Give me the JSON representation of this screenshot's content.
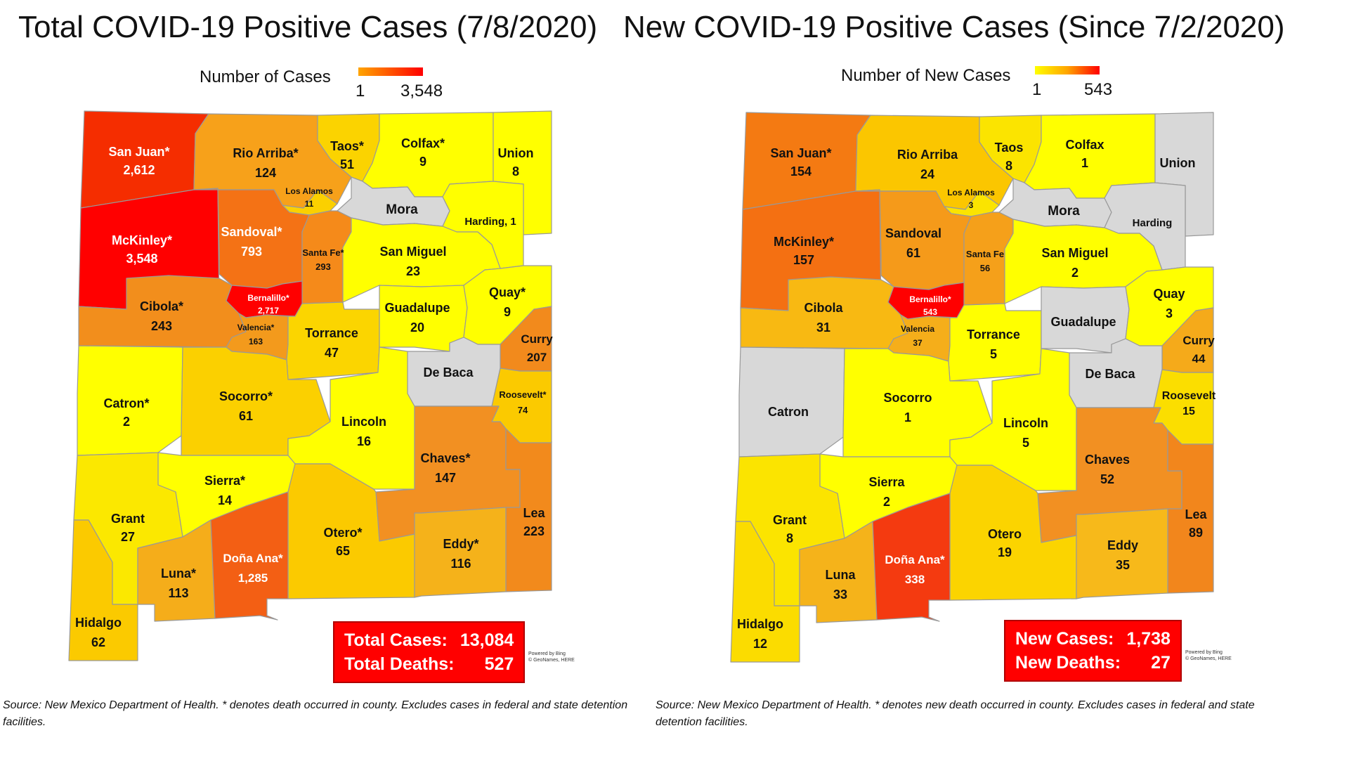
{
  "colors": {
    "low": "#ffff00",
    "mid": "#ffa500",
    "high": "#ff0000",
    "none": "#d8d8d8",
    "red": "#ff0000"
  },
  "left": {
    "title": "Total COVID-19 Positive Cases (7/8/2020)",
    "legend": {
      "label": "Number of Cases",
      "min": "1",
      "max": "3,548"
    },
    "summary": {
      "cases_label": "Total Cases:",
      "cases": "13,084",
      "deaths_label": "Total Deaths:",
      "deaths": "527"
    },
    "powered": [
      "Powered by Bing",
      "© GeoNames, HERE"
    ],
    "source": "Source: New Mexico Department of Health. * denotes death occurred in county. Excludes cases in federal and state detention facilities.",
    "counties": {
      "sanjuan": {
        "name": "San Juan*",
        "value": "2,612",
        "color": "#f52d00"
      },
      "rioarriba": {
        "name": "Rio Arriba*",
        "value": "124",
        "color": "#f7a11a"
      },
      "taos": {
        "name": "Taos*",
        "value": "51",
        "color": "#fbd300"
      },
      "colfax": {
        "name": "Colfax*",
        "value": "9",
        "color": "#ffff00"
      },
      "union": {
        "name": "Union",
        "value": "8",
        "color": "#ffff00"
      },
      "losalamos": {
        "name": "Los Alamos",
        "value": "11",
        "color": "#fbd000"
      },
      "mora": {
        "name": "Mora",
        "value": "",
        "color": "#d8d8d8"
      },
      "harding": {
        "name": "Harding, 1",
        "value": "",
        "color": "#ffff00"
      },
      "mckinley": {
        "name": "McKinley*",
        "value": "3,548",
        "color": "#ff0000"
      },
      "sandoval": {
        "name": "Sandoval*",
        "value": "793",
        "color": "#f47215"
      },
      "santafe": {
        "name": "Santa Fe*",
        "value": "293",
        "color": "#f58a1a"
      },
      "sanmiguel": {
        "name": "San Miguel",
        "value": "23",
        "color": "#ffff00"
      },
      "cibola": {
        "name": "Cibola*",
        "value": "243",
        "color": "#f28e1c"
      },
      "bernalillo": {
        "name": "Bernalillo*",
        "value": "2,717",
        "color": "#ff0000"
      },
      "valencia": {
        "name": "Valencia*",
        "value": "163",
        "color": "#f39a1c"
      },
      "torrance": {
        "name": "Torrance",
        "value": "47",
        "color": "#fbd500"
      },
      "guadalupe": {
        "name": "Guadalupe",
        "value": "20",
        "color": "#ffff00"
      },
      "quay": {
        "name": "Quay*",
        "value": "9",
        "color": "#ffff00"
      },
      "curry": {
        "name": "Curry",
        "value": "207",
        "color": "#f28a1c"
      },
      "debaca": {
        "name": "De Baca",
        "value": "",
        "color": "#d8d8d8"
      },
      "catron": {
        "name": "Catron*",
        "value": "2",
        "color": "#ffff00"
      },
      "socorro": {
        "name": "Socorro*",
        "value": "61",
        "color": "#fbd000"
      },
      "lincoln": {
        "name": "Lincoln",
        "value": "16",
        "color": "#ffff00"
      },
      "roosevelt": {
        "name": "Roosevelt*",
        "value": "74",
        "color": "#fbca00"
      },
      "chaves": {
        "name": "Chaves*",
        "value": "147",
        "color": "#f29022"
      },
      "sierra": {
        "name": "Sierra*",
        "value": "14",
        "color": "#ffff00"
      },
      "grant": {
        "name": "Grant",
        "value": "27",
        "color": "#fbe800"
      },
      "otero": {
        "name": "Otero*",
        "value": "65",
        "color": "#fbca00"
      },
      "lea": {
        "name": "Lea",
        "value": "223",
        "color": "#f28a1c"
      },
      "luna": {
        "name": "Luna*",
        "value": "113",
        "color": "#f5ad1a"
      },
      "donaana": {
        "name": "Doña Ana*",
        "value": "1,285",
        "color": "#f35f14"
      },
      "eddy": {
        "name": "Eddy*",
        "value": "116",
        "color": "#f5b21a"
      },
      "hidalgo": {
        "name": "Hidalgo",
        "value": "62",
        "color": "#fbca00"
      }
    }
  },
  "right": {
    "title": "New COVID-19 Positive Cases (Since 7/2/2020)",
    "legend": {
      "label": "Number of New Cases",
      "min": "1",
      "max": "543"
    },
    "summary": {
      "cases_label": "New Cases:",
      "cases": "1,738",
      "deaths_label": "New Deaths:",
      "deaths": "27"
    },
    "powered": [
      "Powered by Bing",
      "© GeoNames, HERE"
    ],
    "source": "Source: New Mexico Department of Health. * denotes new death occurred in county. Excludes cases in federal and state detention facilities.",
    "counties": {
      "sanjuan": {
        "name": "San Juan*",
        "value": "154",
        "color": "#f47a12"
      },
      "rioarriba": {
        "name": "Rio Arriba",
        "value": "24",
        "color": "#fbc600"
      },
      "taos": {
        "name": "Taos",
        "value": "8",
        "color": "#fbe400"
      },
      "colfax": {
        "name": "Colfax",
        "value": "1",
        "color": "#ffff00"
      },
      "union": {
        "name": "Union",
        "value": "",
        "color": "#d8d8d8"
      },
      "losalamos": {
        "name": "Los Alamos",
        "value": "3",
        "color": "#fbe400"
      },
      "mora": {
        "name": "Mora",
        "value": "",
        "color": "#d8d8d8"
      },
      "harding": {
        "name": "Harding",
        "value": "",
        "color": "#d8d8d8"
      },
      "mckinley": {
        "name": "McKinley*",
        "value": "157",
        "color": "#f47012"
      },
      "sandoval": {
        "name": "Sandoval",
        "value": "61",
        "color": "#f59a1a"
      },
      "santafe": {
        "name": "Santa Fe",
        "value": "56",
        "color": "#f5a01a"
      },
      "sanmiguel": {
        "name": "San Miguel",
        "value": "2",
        "color": "#ffff00"
      },
      "cibola": {
        "name": "Cibola",
        "value": "31",
        "color": "#f8b912"
      },
      "bernalillo": {
        "name": "Bernalillo*",
        "value": "543",
        "color": "#ff0000"
      },
      "valencia": {
        "name": "Valencia",
        "value": "37",
        "color": "#f5ae1a"
      },
      "torrance": {
        "name": "Torrance",
        "value": "5",
        "color": "#ffff00"
      },
      "guadalupe": {
        "name": "Guadalupe",
        "value": "",
        "color": "#d8d8d8"
      },
      "quay": {
        "name": "Quay",
        "value": "3",
        "color": "#ffff00"
      },
      "curry": {
        "name": "Curry",
        "value": "44",
        "color": "#f5aa1a"
      },
      "debaca": {
        "name": "De Baca",
        "value": "",
        "color": "#d8d8d8"
      },
      "catron": {
        "name": "Catron",
        "value": "",
        "color": "#d8d8d8"
      },
      "socorro": {
        "name": "Socorro",
        "value": "1",
        "color": "#ffff00"
      },
      "lincoln": {
        "name": "Lincoln",
        "value": "5",
        "color": "#ffff00"
      },
      "roosevelt": {
        "name": "Roosevelt",
        "value": "15",
        "color": "#fbde00"
      },
      "chaves": {
        "name": "Chaves",
        "value": "52",
        "color": "#f29022"
      },
      "sierra": {
        "name": "Sierra",
        "value": "2",
        "color": "#ffff00"
      },
      "grant": {
        "name": "Grant",
        "value": "8",
        "color": "#fbe400"
      },
      "otero": {
        "name": "Otero",
        "value": "19",
        "color": "#fbd400"
      },
      "lea": {
        "name": "Lea",
        "value": "89",
        "color": "#f2861c"
      },
      "luna": {
        "name": "Luna",
        "value": "33",
        "color": "#f5b31a"
      },
      "donaana": {
        "name": "Doña Ana*",
        "value": "338",
        "color": "#f43a10"
      },
      "eddy": {
        "name": "Eddy",
        "value": "35",
        "color": "#f7b91a"
      },
      "hidalgo": {
        "name": "Hidalgo",
        "value": "12",
        "color": "#fbdc00"
      }
    }
  }
}
